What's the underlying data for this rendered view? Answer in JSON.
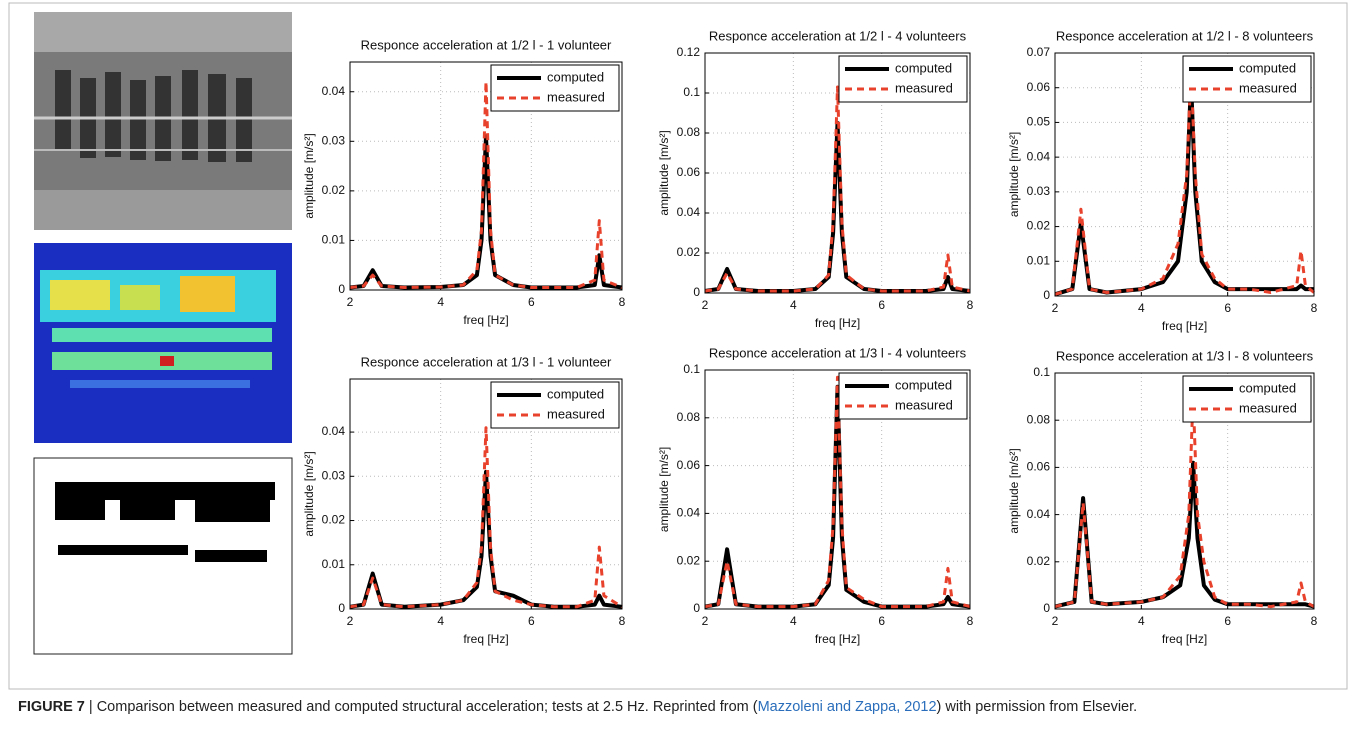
{
  "chart_data": [
    {
      "type": "line",
      "title": "Responce acceleration at 1/2 l - 1 volunteer",
      "x_label": "freq [Hz]",
      "y_label": "amplitude [m/s²]",
      "x": [
        2,
        2.3,
        2.5,
        2.7,
        3.2,
        4,
        4.5,
        4.8,
        4.9,
        5,
        5.1,
        5.2,
        5.6,
        6,
        6.5,
        7,
        7.4,
        7.5,
        7.6,
        8
      ],
      "series": [
        {
          "name": "computed",
          "color": "#000000",
          "dashed": false,
          "values": [
            0.0005,
            0.0008,
            0.004,
            0.0008,
            0.0005,
            0.0006,
            0.001,
            0.003,
            0.01,
            0.031,
            0.01,
            0.003,
            0.001,
            0.0005,
            0.0005,
            0.0005,
            0.001,
            0.007,
            0.001,
            0.0005
          ]
        },
        {
          "name": "measured",
          "color": "#e8412c",
          "dashed": true,
          "values": [
            0.0005,
            0.0008,
            0.003,
            0.0008,
            0.0005,
            0.0006,
            0.001,
            0.004,
            0.012,
            0.042,
            0.012,
            0.003,
            0.001,
            0.0005,
            0.0005,
            0.0005,
            0.002,
            0.014,
            0.002,
            0.0005
          ]
        }
      ],
      "xlim": [
        2,
        8
      ],
      "xticks": [
        2,
        4,
        6,
        8
      ],
      "ylim": [
        0,
        0.046
      ],
      "yticks": [
        0,
        0.01,
        0.02,
        0.03,
        0.04
      ],
      "grid": true,
      "legend": "upper right"
    },
    {
      "type": "line",
      "title": "Responce acceleration at 1/2 l - 4 volunteers",
      "x_label": "freq [Hz]",
      "y_label": "amplitude [m/s²]",
      "x": [
        2,
        2.3,
        2.5,
        2.7,
        3.2,
        4,
        4.5,
        4.8,
        4.9,
        5,
        5.1,
        5.2,
        5.6,
        6,
        6.5,
        7,
        7.4,
        7.5,
        7.6,
        8
      ],
      "series": [
        {
          "name": "computed",
          "color": "#000000",
          "dashed": false,
          "values": [
            0.001,
            0.002,
            0.012,
            0.002,
            0.001,
            0.001,
            0.002,
            0.008,
            0.03,
            0.085,
            0.03,
            0.008,
            0.002,
            0.001,
            0.001,
            0.001,
            0.002,
            0.008,
            0.002,
            0.001
          ]
        },
        {
          "name": "measured",
          "color": "#e8412c",
          "dashed": true,
          "values": [
            0.001,
            0.002,
            0.01,
            0.002,
            0.001,
            0.001,
            0.002,
            0.009,
            0.035,
            0.103,
            0.035,
            0.009,
            0.002,
            0.001,
            0.001,
            0.001,
            0.003,
            0.019,
            0.003,
            0.001
          ]
        }
      ],
      "xlim": [
        2,
        8
      ],
      "xticks": [
        2,
        4,
        6,
        8
      ],
      "ylim": [
        0,
        0.12
      ],
      "yticks": [
        0,
        0.02,
        0.04,
        0.06,
        0.08,
        0.1,
        0.12
      ],
      "grid": true,
      "legend": "upper right"
    },
    {
      "type": "line",
      "title": "Responce acceleration at 1/2 l - 8 volunteers",
      "x_label": "freq [Hz]",
      "y_label": "amplitude [m/s²]",
      "x": [
        2,
        2.4,
        2.6,
        2.8,
        3.2,
        4,
        4.5,
        4.85,
        5.05,
        5.15,
        5.25,
        5.4,
        5.7,
        6,
        6.5,
        7,
        7.6,
        7.7,
        7.8,
        8
      ],
      "series": [
        {
          "name": "computed",
          "color": "#000000",
          "dashed": false,
          "values": [
            0.0005,
            0.002,
            0.021,
            0.002,
            0.001,
            0.002,
            0.004,
            0.01,
            0.03,
            0.062,
            0.03,
            0.01,
            0.004,
            0.002,
            0.002,
            0.002,
            0.002,
            0.003,
            0.002,
            0.002
          ]
        },
        {
          "name": "measured",
          "color": "#e8412c",
          "dashed": true,
          "values": [
            0.0005,
            0.002,
            0.025,
            0.002,
            0.001,
            0.002,
            0.005,
            0.015,
            0.035,
            0.065,
            0.035,
            0.012,
            0.005,
            0.002,
            0.002,
            0.001,
            0.003,
            0.013,
            0.003,
            0.001
          ]
        }
      ],
      "xlim": [
        2,
        8
      ],
      "xticks": [
        2,
        4,
        6,
        8
      ],
      "ylim": [
        0,
        0.07
      ],
      "yticks": [
        0,
        0.01,
        0.02,
        0.03,
        0.04,
        0.05,
        0.06,
        0.07
      ],
      "grid": true,
      "legend": "upper right"
    },
    {
      "type": "line",
      "title": "Responce acceleration at 1/3 l - 1 volunteer",
      "x_label": "freq [Hz]",
      "y_label": "amplitude [m/s²]",
      "x": [
        2,
        2.3,
        2.5,
        2.7,
        3.2,
        4,
        4.5,
        4.8,
        4.9,
        5,
        5.1,
        5.2,
        5.6,
        6,
        6.5,
        7,
        7.4,
        7.5,
        7.6,
        8
      ],
      "series": [
        {
          "name": "computed",
          "color": "#000000",
          "dashed": false,
          "values": [
            0.0005,
            0.001,
            0.008,
            0.001,
            0.0005,
            0.001,
            0.002,
            0.005,
            0.012,
            0.031,
            0.012,
            0.004,
            0.003,
            0.001,
            0.0005,
            0.0005,
            0.001,
            0.003,
            0.001,
            0.0005
          ]
        },
        {
          "name": "measured",
          "color": "#e8412c",
          "dashed": true,
          "values": [
            0.0005,
            0.001,
            0.007,
            0.001,
            0.0005,
            0.001,
            0.002,
            0.006,
            0.014,
            0.041,
            0.014,
            0.004,
            0.002,
            0.001,
            0.0005,
            0.0005,
            0.002,
            0.014,
            0.003,
            0.0005
          ]
        }
      ],
      "xlim": [
        2,
        8
      ],
      "xticks": [
        2,
        4,
        6,
        8
      ],
      "ylim": [
        0,
        0.052
      ],
      "yticks": [
        0,
        0.01,
        0.02,
        0.03,
        0.04
      ],
      "grid": true,
      "legend": "upper right"
    },
    {
      "type": "line",
      "title": "Responce acceleration at 1/3 l - 4 volunteers",
      "x_label": "freq [Hz]",
      "y_label": "amplitude [m/s²]",
      "x": [
        2,
        2.3,
        2.5,
        2.7,
        3.2,
        4,
        4.5,
        4.8,
        4.9,
        5,
        5.1,
        5.2,
        5.6,
        6,
        6.5,
        7,
        7.4,
        7.5,
        7.6,
        8
      ],
      "series": [
        {
          "name": "computed",
          "color": "#000000",
          "dashed": false,
          "values": [
            0.001,
            0.002,
            0.025,
            0.002,
            0.001,
            0.001,
            0.002,
            0.01,
            0.03,
            0.093,
            0.03,
            0.008,
            0.003,
            0.001,
            0.001,
            0.001,
            0.002,
            0.005,
            0.002,
            0.001
          ]
        },
        {
          "name": "measured",
          "color": "#e8412c",
          "dashed": true,
          "values": [
            0.001,
            0.002,
            0.02,
            0.002,
            0.001,
            0.001,
            0.002,
            0.012,
            0.035,
            0.097,
            0.035,
            0.009,
            0.004,
            0.001,
            0.001,
            0.001,
            0.003,
            0.017,
            0.003,
            0.001
          ]
        }
      ],
      "xlim": [
        2,
        8
      ],
      "xticks": [
        2,
        4,
        6,
        8
      ],
      "ylim": [
        0,
        0.1
      ],
      "yticks": [
        0,
        0.02,
        0.04,
        0.06,
        0.08,
        0.1
      ],
      "grid": true,
      "legend": "upper right"
    },
    {
      "type": "line",
      "title": "Responce acceleration at 1/3 l - 8 volunteers",
      "x_label": "freq [Hz]",
      "y_label": "amplitude [m/s²]",
      "x": [
        2,
        2.45,
        2.65,
        2.85,
        3.2,
        4,
        4.5,
        4.9,
        5.1,
        5.2,
        5.3,
        5.45,
        5.7,
        6,
        6.5,
        7,
        7.6,
        7.7,
        7.8,
        8
      ],
      "series": [
        {
          "name": "computed",
          "color": "#000000",
          "dashed": false,
          "values": [
            0.001,
            0.003,
            0.047,
            0.003,
            0.002,
            0.003,
            0.005,
            0.01,
            0.03,
            0.062,
            0.03,
            0.01,
            0.004,
            0.002,
            0.002,
            0.002,
            0.002,
            0.002,
            0.002,
            0.001
          ]
        },
        {
          "name": "measured",
          "color": "#e8412c",
          "dashed": true,
          "values": [
            0.001,
            0.003,
            0.045,
            0.003,
            0.002,
            0.003,
            0.005,
            0.014,
            0.04,
            0.09,
            0.04,
            0.02,
            0.005,
            0.002,
            0.002,
            0.001,
            0.003,
            0.011,
            0.003,
            0.001
          ]
        }
      ],
      "xlim": [
        2,
        8
      ],
      "xticks": [
        2,
        4,
        6,
        8
      ],
      "ylim": [
        0,
        0.1
      ],
      "yticks": [
        0,
        0.02,
        0.04,
        0.06,
        0.08,
        0.1
      ],
      "grid": true,
      "legend": "upper right"
    }
  ],
  "caption": {
    "label": "FIGURE 7",
    "text_before": "| Comparison between measured and computed structural acceleration; tests at 2.5 Hz. Reprinted from (",
    "link": "Mazzoleni and Zappa, 2012",
    "text_after": ") with permission from Elsevier."
  }
}
